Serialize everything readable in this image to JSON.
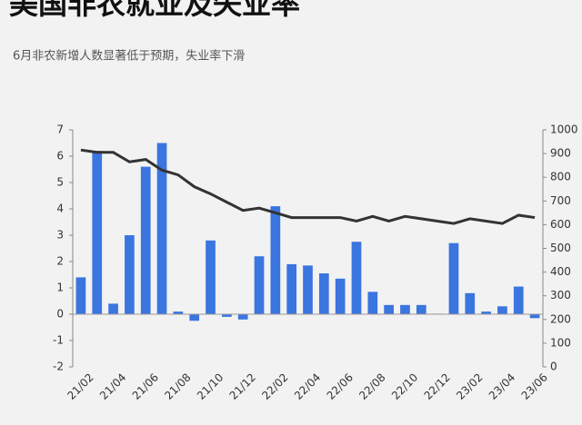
{
  "chart_data": {
    "type": "bar-line",
    "title": "美国非农就业及失业率",
    "subtitle": "6月非农新增人数显著低于预期，失业率下滑",
    "categories": [
      "21/02",
      null,
      "21/04",
      null,
      "21/06",
      null,
      "21/08",
      null,
      "21/10",
      null,
      "21/12",
      null,
      "22/02",
      null,
      "22/04",
      null,
      "22/06",
      null,
      "22/08",
      null,
      "22/10",
      null,
      "22/12",
      null,
      "23/02",
      null,
      "23/04",
      null,
      "23/06"
    ],
    "series": [
      {
        "type": "bar",
        "axis": "y",
        "color": "#3a75e0",
        "values": [
          1.4,
          6.2,
          0.4,
          3.0,
          5.6,
          6.5,
          0.1,
          -0.25,
          2.8,
          -0.1,
          -0.2,
          2.2,
          4.1,
          1.9,
          1.85,
          1.55,
          1.35,
          2.75,
          0.85,
          0.35,
          0.35,
          0.35,
          0.02,
          2.7,
          0.8,
          0.1,
          0.3,
          1.05,
          -0.15
        ]
      },
      {
        "type": "line",
        "axis": "y2",
        "color": "#333333",
        "values": [
          915,
          905,
          905,
          865,
          875,
          830,
          810,
          760,
          730,
          695,
          660,
          670,
          650,
          630,
          630,
          630,
          630,
          615,
          635,
          615,
          635,
          625,
          615,
          605,
          625,
          615,
          605,
          640,
          630
        ]
      }
    ],
    "ylim": [
      -2,
      7
    ],
    "yticks": [
      -2,
      -1,
      0,
      1,
      2,
      3,
      4,
      5,
      6,
      7
    ],
    "y2lim": [
      0,
      1000
    ],
    "y2ticks": [
      0,
      100,
      200,
      300,
      400,
      500,
      600,
      700,
      800,
      900,
      1000
    ]
  }
}
